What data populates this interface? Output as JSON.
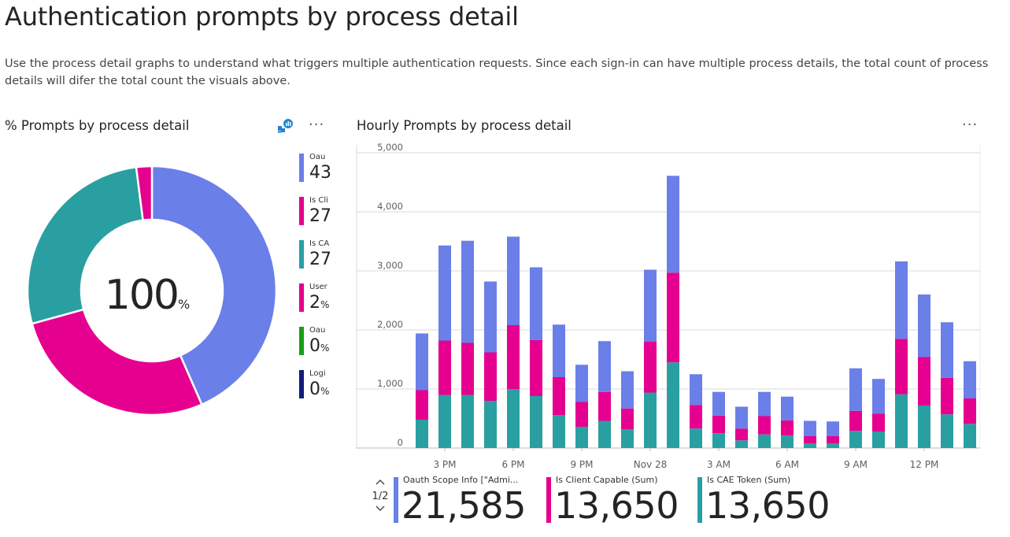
{
  "page": {
    "title": "Authentication prompts by process detail",
    "description": "Use the process detail graphs to understand what triggers multiple authentication requests. Since each sign-in can have multiple process details, the total count of process details will difer the total count the visuals above."
  },
  "donut_card": {
    "title": "% Prompts by process detail",
    "more_label": "···",
    "center_value": "100",
    "center_unit": "%",
    "icon": "smart-narrative-icon"
  },
  "legend": {
    "items": [
      {
        "name": "Oau",
        "value": "43",
        "unit": "",
        "color": "#6B7FE8"
      },
      {
        "name": "Is Cli",
        "value": "27",
        "unit": "",
        "color": "#E5008F"
      },
      {
        "name": "Is CA",
        "value": "27",
        "unit": "",
        "color": "#2A9FA2"
      },
      {
        "name": "User",
        "value": "2",
        "unit": "%",
        "color": "#E5008F"
      },
      {
        "name": "Oau",
        "value": "0",
        "unit": "%",
        "color": "#18A018"
      },
      {
        "name": "Logi",
        "value": "0",
        "unit": "%",
        "color": "#0F1C7A"
      }
    ]
  },
  "bar_card": {
    "title": "Hourly Prompts by process detail",
    "more_label": "···"
  },
  "kpis": {
    "pager": {
      "label": "1/2",
      "up": "^",
      "down": "v"
    },
    "items": [
      {
        "name": "Oauth Scope Info [\"Admi...",
        "value": "21,585",
        "color": "#6B7FE8"
      },
      {
        "name": "Is Client Capable (Sum)",
        "value": "13,650",
        "color": "#E5008F"
      },
      {
        "name": "Is CAE Token (Sum)",
        "value": "13,650",
        "color": "#2A9FA2"
      }
    ]
  },
  "chart_data": [
    {
      "type": "pie",
      "title": "% Prompts by process detail",
      "labels": [
        "Oauth Scope Info",
        "Is Client Capable",
        "Is CAE Token",
        "User"
      ],
      "values": [
        43,
        27,
        27,
        2
      ],
      "colors": [
        "#6B7FE8",
        "#E5008F",
        "#2A9FA2",
        "#E5008F"
      ],
      "center_label": "100%"
    },
    {
      "type": "bar",
      "stacked": true,
      "title": "Hourly Prompts by process detail",
      "ylim": [
        0,
        5000
      ],
      "yticks": [
        "0",
        "1,000",
        "2,000",
        "3,000",
        "4,000",
        "5,000"
      ],
      "ytick_values": [
        0,
        1000,
        2000,
        3000,
        4000,
        5000
      ],
      "xticks": [
        {
          "label": "3 PM",
          "index": 1
        },
        {
          "label": "6 PM",
          "index": 4
        },
        {
          "label": "9 PM",
          "index": 7
        },
        {
          "label": "Nov 28",
          "index": 10
        },
        {
          "label": "3 AM",
          "index": 13
        },
        {
          "label": "6 AM",
          "index": 16
        },
        {
          "label": "9 AM",
          "index": 19
        },
        {
          "label": "12 PM",
          "index": 22
        }
      ],
      "series": [
        {
          "name": "Is CAE Token",
          "color": "#2A9FA2",
          "values": [
            480,
            900,
            900,
            800,
            1000,
            880,
            560,
            360,
            460,
            320,
            940,
            1450,
            330,
            250,
            130,
            230,
            210,
            80,
            80,
            290,
            280,
            910,
            720,
            570,
            410
          ]
        },
        {
          "name": "Is Client Capable",
          "color": "#E5008F",
          "values": [
            500,
            920,
            880,
            820,
            1080,
            950,
            640,
            420,
            490,
            350,
            860,
            1520,
            400,
            300,
            200,
            310,
            260,
            120,
            120,
            340,
            300,
            940,
            820,
            620,
            430
          ]
        },
        {
          "name": "Oauth Scope Info",
          "color": "#6B7FE8",
          "values": [
            960,
            1610,
            1730,
            1200,
            1500,
            1230,
            890,
            630,
            860,
            630,
            1220,
            1640,
            520,
            400,
            370,
            410,
            400,
            260,
            250,
            720,
            590,
            1310,
            1060,
            940,
            630
          ]
        }
      ]
    }
  ]
}
